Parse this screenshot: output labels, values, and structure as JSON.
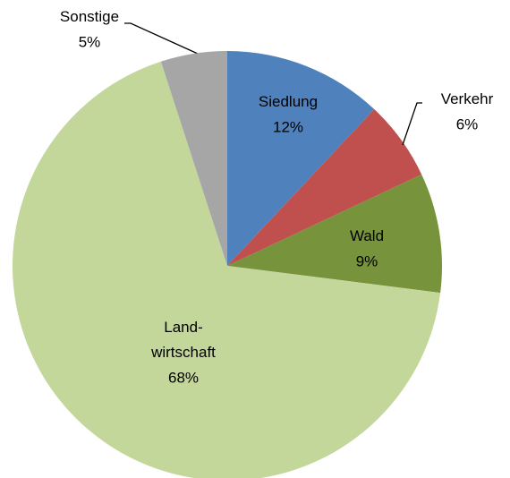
{
  "chart_data": {
    "type": "pie",
    "categories": [
      "Siedlung",
      "Verkehr",
      "Wald",
      "Land-wirtschaft",
      "Sonstige"
    ],
    "values": [
      12,
      6,
      9,
      68,
      5
    ],
    "value_labels": [
      "12%",
      "6%",
      "9%",
      "68%",
      "5%"
    ],
    "colors": [
      "#4f81bd",
      "#c0504d",
      "#77933c",
      "#c4d79b",
      "#a6a6a6"
    ]
  }
}
